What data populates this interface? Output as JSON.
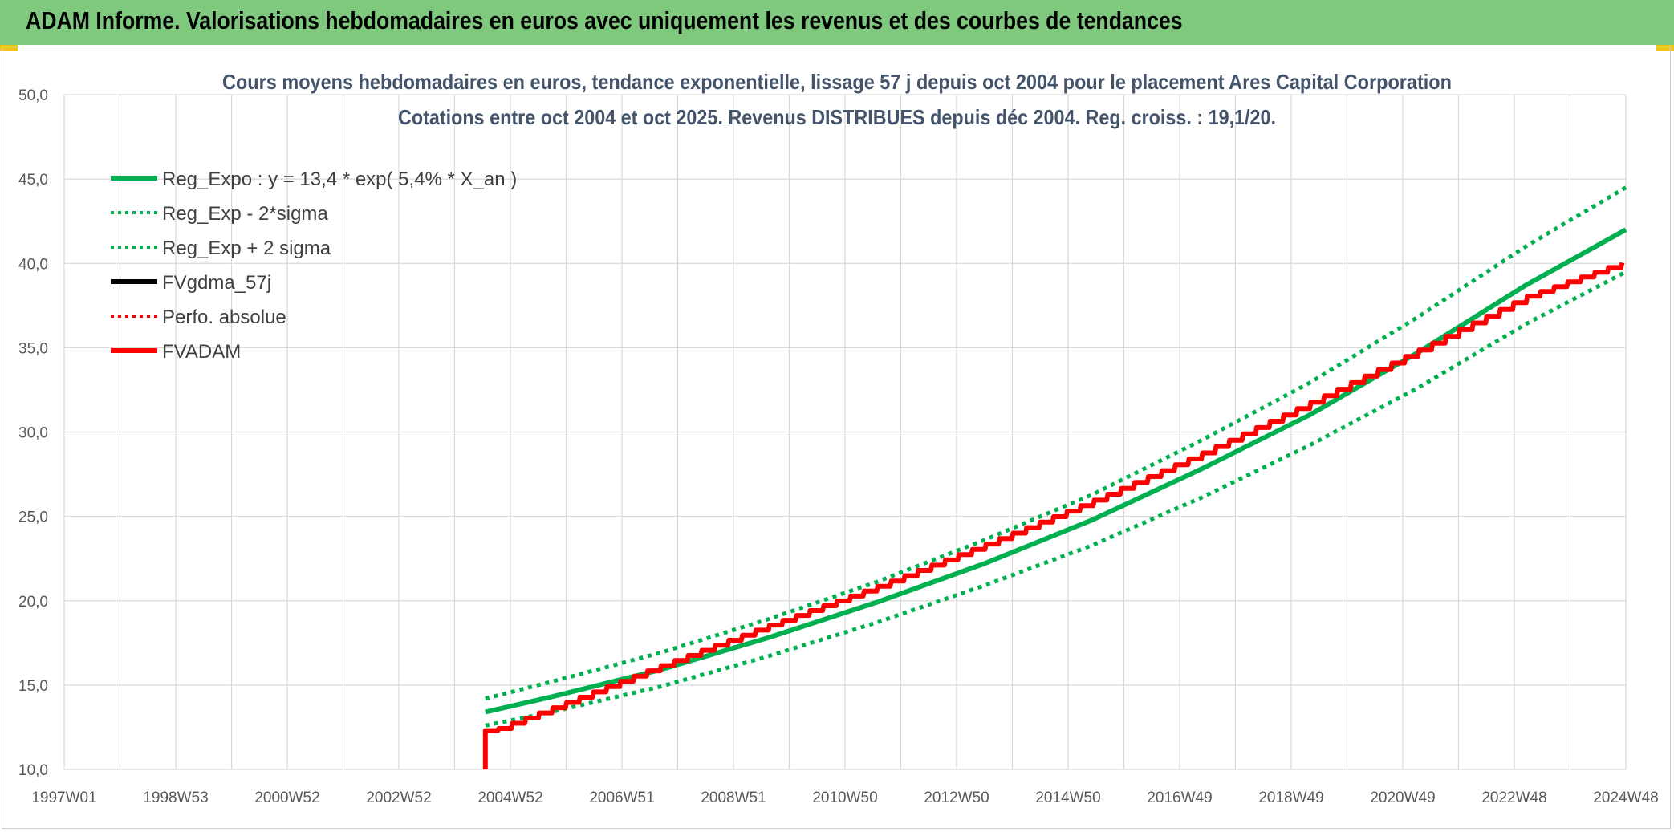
{
  "header": {
    "title": "ADAM Informe. Valorisations hebdomadaires en euros avec uniquement les revenus et des courbes de tendances"
  },
  "colors": {
    "banner": "#7fc97f",
    "green": "#00b050",
    "red": "#ff0000",
    "black": "#000000",
    "grid": "#d9d9d9"
  },
  "chart_data": {
    "type": "line",
    "title": "Cours moyens hebdomadaires en euros, tendance exponentielle, lissage 57 j depuis oct 2004 pour le placement Ares Capital Corporation",
    "subtitle": "Cotations entre oct 2004 et oct 2025. Revenus DISTRIBUES depuis déc 2004. Reg. croiss. : 19,1/20.",
    "x_ticks": [
      "1997W01",
      "1998W53",
      "2000W52",
      "2002W52",
      "2004W52",
      "2006W51",
      "2008W51",
      "2010W50",
      "2012W50",
      "2014W50",
      "2016W49",
      "2018W49",
      "2020W49",
      "2022W48",
      "2024W48"
    ],
    "y_ticks": [
      "10,0",
      "15,0",
      "20,0",
      "25,0",
      "30,0",
      "35,0",
      "40,0",
      "45,0",
      "50,0"
    ],
    "ylim": [
      10,
      50
    ],
    "xlim": [
      1997.0,
      2025.85
    ],
    "grid": true,
    "legend_position": "top-left",
    "series": [
      {
        "name": "Reg_Expo : y = 13,4 * exp( 5,4% *  X_an )",
        "style": "solid",
        "color": "#00b050",
        "x": [
          2004.78,
          2006,
          2008,
          2010,
          2012,
          2014,
          2016,
          2018,
          2020,
          2022,
          2024,
          2025.85
        ],
        "y": [
          13.4,
          14.3,
          15.9,
          17.8,
          19.9,
          22.2,
          24.8,
          27.8,
          31.0,
          34.7,
          38.7,
          42.0
        ]
      },
      {
        "name": "Reg_Exp - 2*sigma",
        "style": "dotted",
        "color": "#00b050",
        "x": [
          2004.78,
          2006,
          2008,
          2010,
          2012,
          2014,
          2016,
          2018,
          2020,
          2022,
          2024,
          2025.85
        ],
        "y": [
          12.6,
          13.4,
          14.9,
          16.7,
          18.7,
          20.9,
          23.3,
          26.1,
          29.2,
          32.6,
          36.4,
          39.5
        ]
      },
      {
        "name": "Reg_Exp + 2 sigma",
        "style": "dotted",
        "color": "#00b050",
        "x": [
          2004.78,
          2006,
          2008,
          2010,
          2012,
          2014,
          2016,
          2018,
          2020,
          2022,
          2024,
          2025.85
        ],
        "y": [
          14.2,
          15.2,
          16.9,
          18.9,
          21.1,
          23.6,
          26.3,
          29.5,
          32.9,
          36.8,
          41.0,
          44.5
        ]
      },
      {
        "name": "FVgdma_57j",
        "style": "solid",
        "color": "#000000",
        "x": [],
        "y": []
      },
      {
        "name": "Perfo. absolue",
        "style": "dotted",
        "color": "#ff0000",
        "x": [],
        "y": []
      },
      {
        "name": "FVADAM",
        "style": "solid",
        "color": "#ff0000",
        "x": [
          2004.78,
          2004.78,
          2006,
          2008,
          2010,
          2012,
          2014,
          2016,
          2018,
          2020,
          2022,
          2024,
          2025.85
        ],
        "y": [
          10.0,
          12.3,
          13.8,
          16.3,
          18.7,
          21.0,
          23.5,
          26.1,
          28.9,
          31.9,
          35.0,
          38.2,
          40.3
        ]
      }
    ]
  }
}
